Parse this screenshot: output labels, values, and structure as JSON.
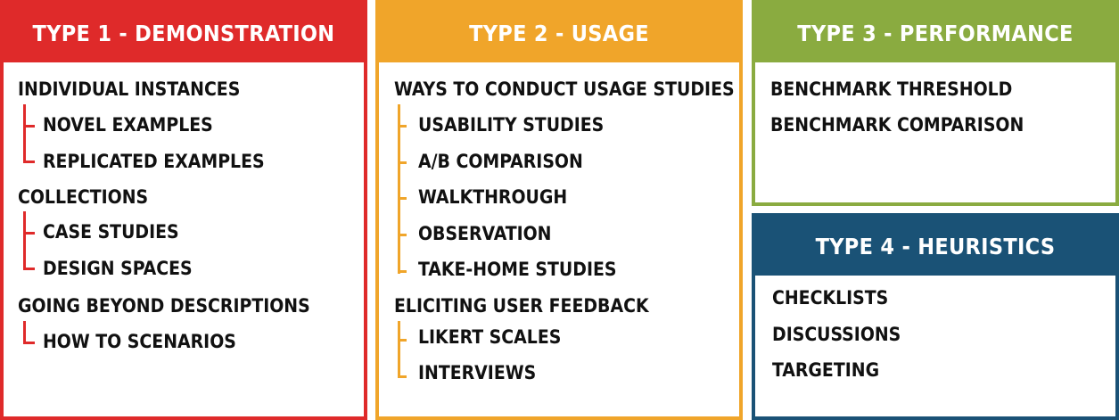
{
  "type1": {
    "title": "TYPE 1 - DEMONSTRATION",
    "color": "#df2a2a",
    "groups": [
      {
        "label": "INDIVIDUAL INSTANCES",
        "items": [
          "NOVEL EXAMPLES",
          "REPLICATED EXAMPLES"
        ]
      },
      {
        "label": "COLLECTIONS",
        "items": [
          "CASE STUDIES",
          "DESIGN SPACES"
        ]
      },
      {
        "label": "GOING BEYOND DESCRIPTIONS",
        "items": [
          "HOW TO SCENARIOS"
        ]
      }
    ]
  },
  "type2": {
    "title": "TYPE 2 - USAGE",
    "color": "#f0a52a",
    "groups": [
      {
        "label": "WAYS TO CONDUCT USAGE STUDIES",
        "items": [
          "USABILITY STUDIES",
          "A/B COMPARISON",
          "WALKTHROUGH",
          "OBSERVATION",
          "TAKE-HOME STUDIES"
        ]
      },
      {
        "label": "ELICITING USER FEEDBACK",
        "items": [
          "LIKERT SCALES",
          "INTERVIEWS"
        ]
      }
    ]
  },
  "type3": {
    "title": "TYPE 3 - PERFORMANCE",
    "color": "#8aab40",
    "items": [
      "BENCHMARK THRESHOLD",
      "BENCHMARK COMPARISON"
    ]
  },
  "type4": {
    "title": "TYPE 4 - HEURISTICS",
    "color": "#1a5276",
    "items": [
      "CHECKLISTS",
      "DISCUSSIONS",
      "TARGETING"
    ]
  }
}
